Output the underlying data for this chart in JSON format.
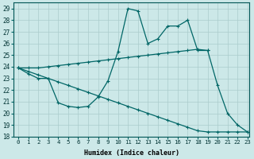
{
  "bg_color": "#cce8e8",
  "line_color": "#006666",
  "grid_color": "#aacccc",
  "xlabel": "Humidex (Indice chaleur)",
  "ylim": [
    18,
    29.5
  ],
  "xlim": [
    -0.5,
    23.2
  ],
  "yticks": [
    18,
    19,
    20,
    21,
    22,
    23,
    24,
    25,
    26,
    27,
    28,
    29
  ],
  "xticks": [
    0,
    1,
    2,
    3,
    4,
    5,
    6,
    7,
    8,
    9,
    10,
    11,
    12,
    13,
    14,
    15,
    16,
    17,
    18,
    19,
    20,
    21,
    22,
    23
  ],
  "line1_x": [
    0,
    1,
    2,
    3,
    4,
    5,
    6,
    7,
    8,
    9,
    10,
    11,
    12,
    13,
    14,
    15,
    16,
    17,
    18,
    19,
    20,
    21,
    22,
    23
  ],
  "line1_y": [
    23.9,
    23.4,
    23.0,
    23.0,
    20.9,
    20.6,
    20.5,
    20.6,
    21.4,
    22.8,
    25.3,
    29.0,
    28.8,
    26.0,
    26.4,
    27.5,
    27.5,
    28.0,
    25.4,
    25.4,
    22.4,
    20.0,
    19.0,
    18.4
  ],
  "line2_x": [
    0,
    1,
    2,
    3,
    4,
    5,
    6,
    7,
    8,
    9,
    10,
    11,
    12,
    13,
    14,
    15,
    16,
    17,
    18,
    19
  ],
  "line2_y": [
    23.9,
    23.9,
    23.9,
    24.0,
    24.1,
    24.2,
    24.3,
    24.4,
    24.5,
    24.6,
    24.7,
    24.8,
    24.9,
    25.0,
    25.1,
    25.2,
    25.3,
    25.4,
    25.5,
    25.4
  ],
  "line3_x": [
    0,
    1,
    2,
    3,
    4,
    5,
    6,
    7,
    8,
    9,
    10,
    11,
    12,
    13,
    14,
    15,
    16,
    17,
    18,
    19,
    20,
    21,
    22,
    23
  ],
  "line3_y": [
    23.9,
    23.6,
    23.3,
    23.0,
    22.7,
    22.4,
    22.1,
    21.8,
    21.5,
    21.2,
    20.9,
    20.6,
    20.3,
    20.0,
    19.7,
    19.4,
    19.1,
    18.8,
    18.5,
    18.4,
    18.4,
    18.4,
    18.4,
    18.4
  ]
}
